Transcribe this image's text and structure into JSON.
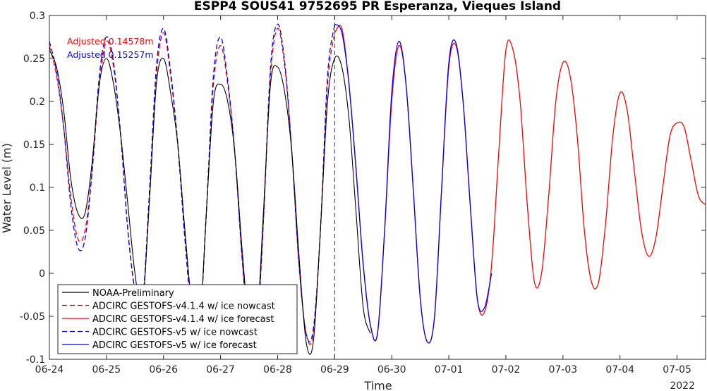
{
  "chart_data": {
    "type": "line",
    "title": "ESPP4 SOUS41 9752695 PR Esperanza, Vieques Island",
    "xlabel": "Time",
    "ylabel": "Water Level (m)",
    "year_label": "2022",
    "ylim": [
      -0.1,
      0.3
    ],
    "yticks": [
      -0.1,
      -0.05,
      0,
      0.05,
      0.1,
      0.15,
      0.2,
      0.25,
      0.3
    ],
    "ytick_labels": [
      "-0.1",
      "-0.05",
      "0",
      "0.05",
      "0.1",
      "0.15",
      "0.2",
      "0.25",
      "0.3"
    ],
    "xlim": [
      "2022-06-24 00:00",
      "2022-07-05 12:00"
    ],
    "xticks": [
      "06-24",
      "06-25",
      "06-26",
      "06-27",
      "06-28",
      "06-29",
      "06-30",
      "07-01",
      "07-02",
      "07-03",
      "07-04",
      "07-05"
    ],
    "forecast_start": "2022-06-29 00:00",
    "grid": false,
    "legend_position": "bottom-left",
    "annotations": [
      {
        "text": "Adjusted 0.14578m",
        "color": "#ff0000"
      },
      {
        "text": "Adjusted 0.15257m",
        "color": "#0000ff"
      }
    ],
    "series": [
      {
        "name": "NOAA-Preliminary",
        "color": "#000000",
        "style": "solid",
        "x": [
          "06-24 00:00",
          "06-24 03:00",
          "06-24 06:00",
          "06-24 09:00",
          "06-24 12:00",
          "06-24 15:00",
          "06-24 18:00",
          "06-24 21:00",
          "06-25 00:00",
          "06-25 03:00",
          "06-25 06:00",
          "06-25 09:00",
          "06-25 12:00",
          "06-25 15:00",
          "06-25 18:00",
          "06-25 21:00",
          "06-26 00:00",
          "06-26 03:00",
          "06-26 06:00",
          "06-26 09:00",
          "06-26 12:00",
          "06-26 15:00",
          "06-26 18:00",
          "06-26 21:00",
          "06-27 00:00",
          "06-27 03:00",
          "06-27 06:00",
          "06-27 09:00",
          "06-27 12:00",
          "06-27 15:00",
          "06-27 18:00",
          "06-27 21:00",
          "06-28 00:00",
          "06-28 03:00",
          "06-28 06:00",
          "06-28 09:00",
          "06-28 12:00",
          "06-28 15:00",
          "06-28 18:00",
          "06-28 21:00",
          "06-29 00:00",
          "06-29 03:00",
          "06-29 06:00",
          "06-29 09:00",
          "06-29 12:00",
          "06-29 15:00"
        ],
        "y": [
          0.26,
          0.24,
          0.19,
          0.11,
          0.07,
          0.07,
          0.13,
          0.22,
          0.25,
          0.22,
          0.16,
          0.08,
          0.0,
          -0.04,
          0.08,
          0.22,
          0.25,
          0.21,
          0.15,
          0.05,
          -0.04,
          -0.07,
          0.07,
          0.2,
          0.22,
          0.2,
          0.14,
          0.03,
          -0.06,
          -0.07,
          0.07,
          0.22,
          0.24,
          0.21,
          0.14,
          0.02,
          -0.08,
          -0.08,
          0.05,
          0.2,
          0.25,
          0.24,
          0.18,
          0.07,
          -0.04,
          -0.07
        ]
      },
      {
        "name": "ADCIRC GESTOFS-v4.1.4 w/ ice nowcast",
        "color": "#ff0000",
        "style": "dashed",
        "x": [
          "06-24 00:00",
          "06-24 03:00",
          "06-24 06:00",
          "06-24 09:00",
          "06-24 12:00",
          "06-24 15:00",
          "06-24 18:00",
          "06-24 21:00",
          "06-25 00:00",
          "06-25 03:00",
          "06-25 06:00",
          "06-25 09:00",
          "06-25 12:00",
          "06-25 15:00",
          "06-25 18:00",
          "06-25 21:00",
          "06-26 00:00",
          "06-26 03:00",
          "06-26 06:00",
          "06-26 09:00",
          "06-26 12:00",
          "06-26 15:00",
          "06-26 18:00",
          "06-26 21:00",
          "06-27 00:00",
          "06-27 03:00",
          "06-27 06:00",
          "06-27 09:00",
          "06-27 12:00",
          "06-27 15:00",
          "06-27 18:00",
          "06-27 21:00",
          "06-28 00:00",
          "06-28 03:00",
          "06-28 06:00",
          "06-28 09:00",
          "06-28 12:00",
          "06-28 15:00",
          "06-28 18:00",
          "06-28 21:00",
          "06-29 00:00"
        ],
        "y": [
          0.265,
          0.23,
          0.17,
          0.09,
          0.04,
          0.05,
          0.12,
          0.22,
          0.27,
          0.24,
          0.16,
          0.05,
          -0.02,
          -0.04,
          0.09,
          0.23,
          0.28,
          0.23,
          0.15,
          0.04,
          -0.05,
          -0.07,
          0.07,
          0.22,
          0.265,
          0.22,
          0.14,
          0.02,
          -0.07,
          -0.08,
          0.06,
          0.23,
          0.285,
          0.24,
          0.14,
          0.01,
          -0.07,
          -0.07,
          0.05,
          0.22,
          0.28
        ]
      },
      {
        "name": "ADCIRC GESTOFS-v4.1.4 w/ ice forecast",
        "color": "#ff0000",
        "style": "solid",
        "x": [
          "06-29 00:00",
          "06-29 03:00",
          "06-29 06:00",
          "06-29 09:00",
          "06-29 12:00",
          "06-29 15:00",
          "06-29 18:00",
          "06-29 21:00",
          "06-30 00:00",
          "06-30 03:00",
          "06-30 06:00",
          "06-30 09:00",
          "06-30 12:00",
          "06-30 15:00",
          "06-30 18:00",
          "06-30 21:00",
          "07-01 00:00",
          "07-01 03:00",
          "07-01 06:00",
          "07-01 09:00",
          "07-01 12:00",
          "07-01 15:00",
          "07-01 18:00",
          "07-01 21:00",
          "07-02 00:00",
          "07-02 03:00",
          "07-02 06:00",
          "07-02 09:00",
          "07-02 12:00",
          "07-02 15:00",
          "07-02 18:00",
          "07-02 21:00",
          "07-03 00:00",
          "07-03 03:00",
          "07-03 06:00",
          "07-03 09:00",
          "07-03 12:00",
          "07-03 15:00",
          "07-03 18:00",
          "07-03 21:00",
          "07-04 00:00",
          "07-04 03:00",
          "07-04 06:00",
          "07-04 09:00",
          "07-04 12:00",
          "07-04 15:00",
          "07-04 18:00",
          "07-04 21:00",
          "07-05 00:00",
          "07-05 03:00",
          "07-05 06:00",
          "07-05 09:00",
          "07-05 12:00"
        ],
        "y": [
          0.28,
          0.285,
          0.22,
          0.12,
          0.01,
          -0.06,
          -0.07,
          0.05,
          0.2,
          0.265,
          0.22,
          0.1,
          -0.03,
          -0.08,
          -0.05,
          0.1,
          0.24,
          0.265,
          0.2,
          0.08,
          -0.03,
          -0.045,
          0.01,
          0.14,
          0.26,
          0.26,
          0.2,
          0.08,
          -0.01,
          0.0,
          0.09,
          0.2,
          0.245,
          0.23,
          0.16,
          0.05,
          -0.01,
          -0.01,
          0.06,
          0.16,
          0.21,
          0.19,
          0.12,
          0.05,
          0.02,
          0.04,
          0.1,
          0.16,
          0.175,
          0.17,
          0.13,
          0.09,
          0.08
        ]
      },
      {
        "name": "ADCIRC GESTOFS-v5 w/ ice nowcast",
        "color": "#0000ff",
        "style": "dashed",
        "x": [
          "06-24 00:00",
          "06-24 03:00",
          "06-24 06:00",
          "06-24 09:00",
          "06-24 12:00",
          "06-24 15:00",
          "06-24 18:00",
          "06-24 21:00",
          "06-25 00:00",
          "06-25 03:00",
          "06-25 06:00",
          "06-25 09:00",
          "06-25 12:00",
          "06-25 15:00",
          "06-25 18:00",
          "06-25 21:00",
          "06-26 00:00",
          "06-26 03:00",
          "06-26 06:00",
          "06-26 09:00",
          "06-26 12:00",
          "06-26 15:00",
          "06-26 18:00",
          "06-26 21:00",
          "06-27 00:00",
          "06-27 03:00",
          "06-27 06:00",
          "06-27 09:00",
          "06-27 12:00",
          "06-27 15:00",
          "06-27 18:00",
          "06-27 21:00",
          "06-28 00:00",
          "06-28 03:00",
          "06-28 06:00",
          "06-28 09:00",
          "06-28 12:00",
          "06-28 15:00",
          "06-28 18:00",
          "06-28 21:00",
          "06-29 00:00"
        ],
        "y": [
          0.27,
          0.235,
          0.17,
          0.08,
          0.03,
          0.04,
          0.12,
          0.23,
          0.275,
          0.245,
          0.16,
          0.05,
          -0.02,
          -0.04,
          0.09,
          0.24,
          0.285,
          0.235,
          0.15,
          0.04,
          -0.05,
          -0.07,
          0.07,
          0.23,
          0.275,
          0.225,
          0.14,
          0.02,
          -0.07,
          -0.08,
          0.06,
          0.24,
          0.29,
          0.245,
          0.14,
          0.01,
          -0.07,
          -0.065,
          0.05,
          0.23,
          0.29
        ]
      },
      {
        "name": "ADCIRC GESTOFS-v5 w/ ice forecast",
        "color": "#0000ff",
        "style": "solid",
        "x": [
          "06-29 00:00",
          "06-29 03:00",
          "06-29 06:00",
          "06-29 09:00",
          "06-29 12:00",
          "06-29 15:00",
          "06-29 18:00",
          "06-29 21:00",
          "06-30 00:00",
          "06-30 03:00",
          "06-30 06:00",
          "06-30 09:00",
          "06-30 12:00",
          "06-30 15:00",
          "06-30 18:00",
          "06-30 21:00",
          "07-01 00:00",
          "07-01 03:00",
          "07-01 06:00",
          "07-01 09:00",
          "07-01 12:00",
          "07-01 15:00",
          "07-01 18:00"
        ],
        "y": [
          0.29,
          0.28,
          0.22,
          0.12,
          0.01,
          -0.06,
          -0.07,
          0.05,
          0.21,
          0.27,
          0.22,
          0.1,
          -0.03,
          -0.08,
          -0.05,
          0.1,
          0.245,
          0.268,
          0.2,
          0.08,
          -0.03,
          -0.04,
          0.0
        ]
      }
    ]
  }
}
